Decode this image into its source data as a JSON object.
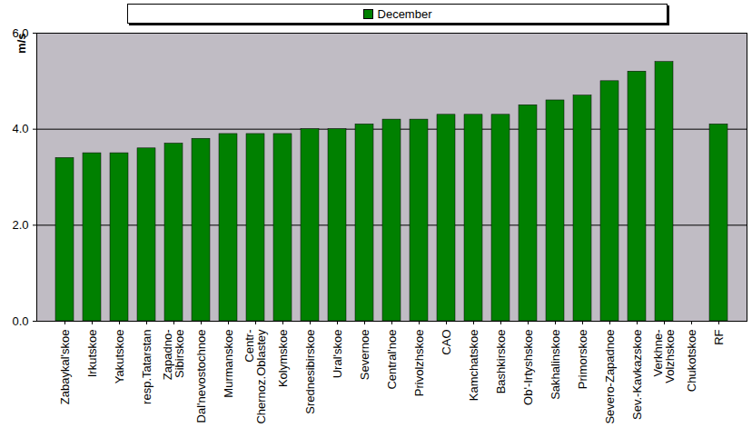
{
  "chart_data": {
    "type": "bar",
    "y_label": "m/s",
    "categories": [
      "Zabaykal'skoe",
      "Irkutskoe",
      "Yakutskoe",
      "resp.Tatarstan",
      "Zapadno-\nSibirskoe",
      "Dal'nevostochnoe",
      "Murmanskoe",
      "Centr-\nChernoz.Oblastey",
      "Kolymskoe",
      "Srednesibirskoe",
      "Ural'skoe",
      "Severnoe",
      "Central'noe",
      "Privolzhskoe",
      "CAO",
      "Kamchatskoe",
      "Bashkirskoe",
      "Ob'-Irtyshskoe",
      "Sakhalinskoe",
      "Primorskoe",
      "Severo-Zapadnoe",
      "Sev.-Kavkazskoe",
      "Verkhne-\nVolzhskoe",
      "Chukotskoe",
      "RF"
    ],
    "series": [
      {
        "name": "December",
        "color": "#008000",
        "values": [
          3.4,
          3.5,
          3.5,
          3.6,
          3.7,
          3.8,
          3.9,
          3.9,
          3.9,
          4.0,
          4.0,
          4.1,
          4.2,
          4.2,
          4.3,
          4.3,
          4.3,
          4.5,
          4.6,
          4.7,
          5.0,
          5.2,
          5.4,
          null,
          4.1
        ]
      }
    ],
    "ylim": [
      0,
      6
    ],
    "yticks": [
      0,
      2,
      4,
      6
    ],
    "grid": true,
    "legend": "top"
  }
}
